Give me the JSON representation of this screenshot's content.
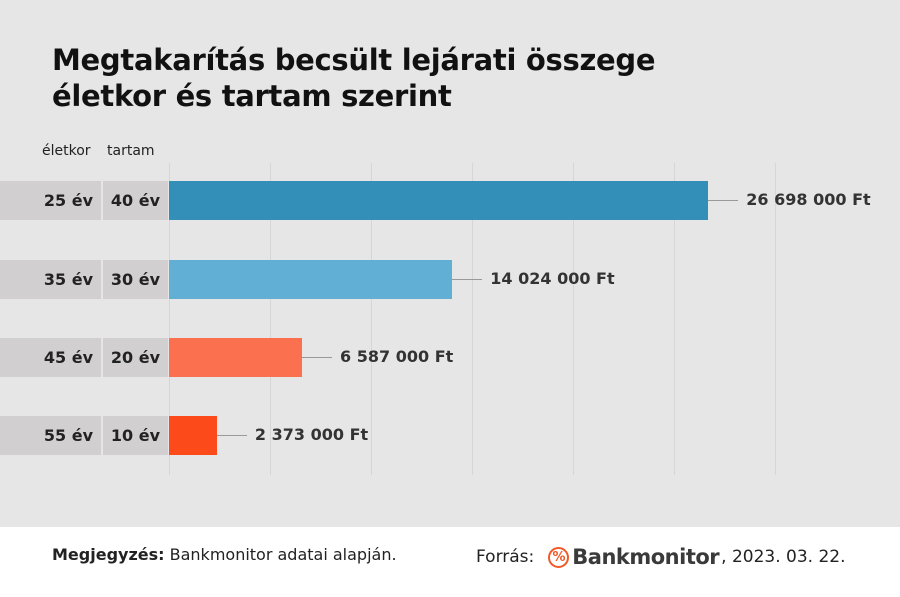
{
  "chart_data": {
    "type": "bar",
    "orientation": "horizontal",
    "title": "Megtakarítás becsült lejárati összege életkor és tartam szerint",
    "column_headers": [
      "életkor",
      "tartam"
    ],
    "categories": [
      {
        "age": "25 év",
        "term": "40 év"
      },
      {
        "age": "35 év",
        "term": "30 év"
      },
      {
        "age": "45 év",
        "term": "20 év"
      },
      {
        "age": "55 év",
        "term": "10 év"
      }
    ],
    "values": [
      26698000,
      14024000,
      6587000,
      2373000
    ],
    "labels": [
      "26 698 000 Ft",
      "14 024 000 Ft",
      "6 587 000 Ft",
      "2 373 000 Ft"
    ],
    "colors": [
      "#338fb8",
      "#62afd6",
      "#fb7150",
      "#fc4a1a"
    ],
    "xlim": [
      0,
      30000000
    ],
    "grid": true
  },
  "footer": {
    "note_label": "Megjegyzés:",
    "note": "Bankmonitor adatai alapján.",
    "source_label": "Forrás:",
    "brand": "Bankmonitor",
    "date": ", 2023. 03. 22."
  }
}
